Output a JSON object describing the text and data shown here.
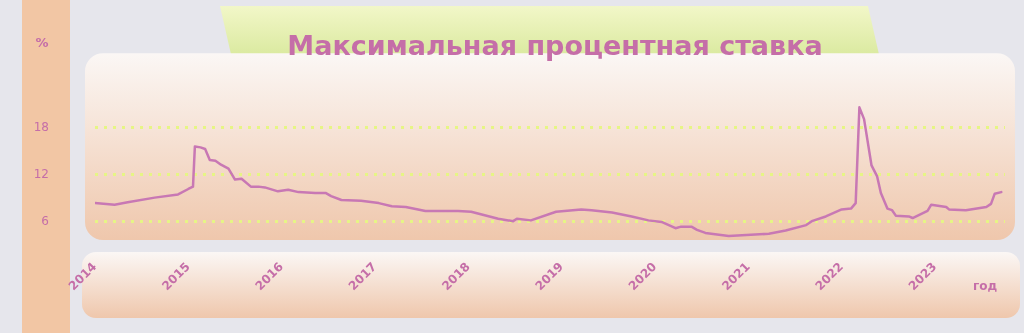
{
  "chart_data": {
    "type": "line",
    "title": "Максимальная процентная ставка",
    "xlabel": "год",
    "ylabel": "%",
    "series": [
      {
        "color": "#c878b4",
        "x": [
          2014.0,
          2014.21,
          2014.35,
          2014.64,
          2014.89,
          2015.0,
          2015.05,
          2015.07,
          2015.13,
          2015.18,
          2015.23,
          2015.29,
          2015.35,
          2015.43,
          2015.5,
          2015.57,
          2015.67,
          2015.75,
          2015.82,
          2015.96,
          2016.07,
          2016.18,
          2016.36,
          2016.47,
          2016.53,
          2016.64,
          2016.85,
          2017.04,
          2017.18,
          2017.33,
          2017.54,
          2017.89,
          2018.03,
          2018.32,
          2018.48,
          2018.52,
          2018.67,
          2018.94,
          2019.21,
          2019.32,
          2019.54,
          2019.75,
          2019.93,
          2020.07,
          2020.22,
          2020.28,
          2020.39,
          2020.45,
          2020.54,
          2020.79,
          2021.22,
          2021.4,
          2021.62,
          2021.68,
          2021.83,
          2022.0,
          2022.1,
          2022.15,
          2022.19,
          2022.24,
          2022.32,
          2022.38,
          2022.42,
          2022.49,
          2022.54,
          2022.58,
          2022.72,
          2022.76,
          2022.92,
          2022.96,
          2023.12,
          2023.15,
          2023.33,
          2023.55,
          2023.6,
          2023.64,
          2023.71
        ],
        "values": [
          8.4,
          8.2,
          8.5,
          9.1,
          9.5,
          10.2,
          10.5,
          15.6,
          15.5,
          15.3,
          13.9,
          13.8,
          13.3,
          12.8,
          11.4,
          11.5,
          10.5,
          10.5,
          10.4,
          9.9,
          10.1,
          9.8,
          9.7,
          9.7,
          9.3,
          8.8,
          8.7,
          8.4,
          8.0,
          7.9,
          7.4,
          7.4,
          7.3,
          6.4,
          6.1,
          6.4,
          6.2,
          7.3,
          7.6,
          7.5,
          7.2,
          6.7,
          6.2,
          6.0,
          5.2,
          5.4,
          5.4,
          5.0,
          4.6,
          4.2,
          4.5,
          4.9,
          5.6,
          6.1,
          6.7,
          7.6,
          7.7,
          8.4,
          20.6,
          19.1,
          13.2,
          11.8,
          9.7,
          7.7,
          7.5,
          6.8,
          6.7,
          6.5,
          7.4,
          8.2,
          7.9,
          7.6,
          7.5,
          7.9,
          8.3,
          9.6,
          9.8
        ]
      }
    ],
    "xlim": [
      2014,
      2023.75
    ],
    "xticks": [
      2014,
      2015,
      2016,
      2017,
      2018,
      2019,
      2020,
      2021,
      2022,
      2023
    ],
    "ylim": [
      3.7,
      27.5
    ],
    "yticks": [
      6,
      12,
      18
    ],
    "grid": "y",
    "legend": false,
    "marker": "none",
    "line_style": "solid"
  }
}
